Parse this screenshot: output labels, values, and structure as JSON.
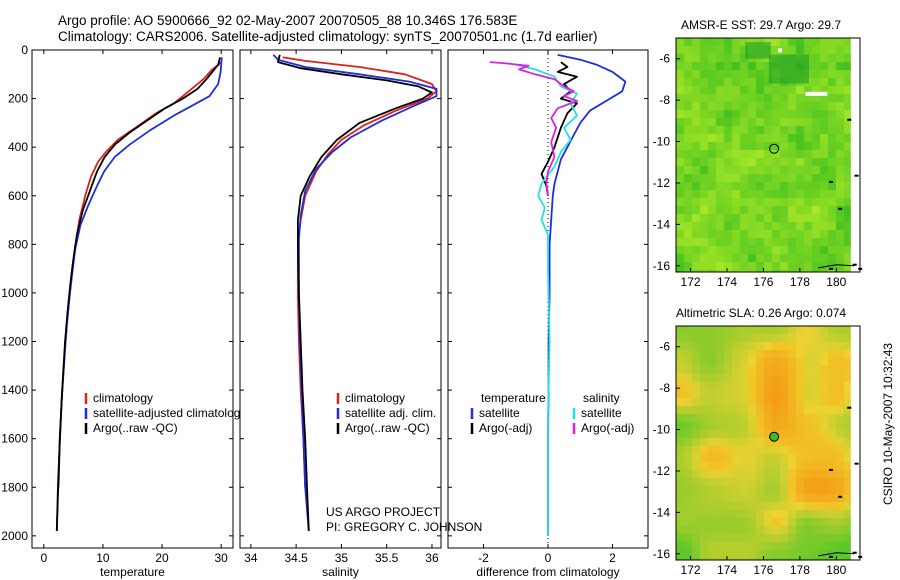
{
  "header": {
    "line1": "Argo profile: AO 5900666_92 02-May-2007 20070505_88 10.346S 176.583E",
    "line2": "Climatology: CARS2006. Satellite-adjusted climatology: synTS_20070501.nc (1.7d earlier)"
  },
  "credit": {
    "line1": "US ARGO PROJECT",
    "line2": "PI: GREGORY C. JOHNSON"
  },
  "stamp": "CSIRO 10-May-2007 10:32:43",
  "colors": {
    "clim": "#e0201a",
    "sat": "#1c2ee0",
    "argo": "#000000",
    "cyan": "#22e0e8",
    "magenta": "#e020d8"
  },
  "chart_data": [
    {
      "type": "line",
      "id": "temp",
      "xlabel": "temperature",
      "ylabel": "",
      "xlim": [
        -2,
        32
      ],
      "ylim": [
        2050,
        0
      ],
      "xticks": [
        "0",
        "10",
        "20",
        "30"
      ],
      "xtick_values": [
        0,
        10,
        20,
        30
      ],
      "yticks": [
        "0",
        "200",
        "400",
        "600",
        "800",
        "1000",
        "1200",
        "1400",
        "1600",
        "1800",
        "2000"
      ],
      "ytick_values": [
        0,
        200,
        400,
        600,
        800,
        1000,
        1200,
        1400,
        1600,
        1800,
        2000
      ],
      "legend": [
        "climatology",
        "satellite-adjusted climatology",
        "Argo(..raw -QC)"
      ],
      "series": [
        {
          "name": "climatology",
          "color_key": "clim",
          "points": [
            [
              29.9,
              50
            ],
            [
              29.6,
              60
            ],
            [
              28.5,
              80
            ],
            [
              27.0,
              120
            ],
            [
              25.0,
              160
            ],
            [
              22.0,
              220
            ],
            [
              19.0,
              260
            ],
            [
              15.5,
              320
            ],
            [
              12.5,
              370
            ],
            [
              10.5,
              420
            ],
            [
              9.2,
              460
            ],
            [
              8.0,
              520
            ],
            [
              7.0,
              600
            ],
            [
              6.0,
              700
            ],
            [
              5.4,
              800
            ],
            [
              4.8,
              900
            ],
            [
              4.4,
              1000
            ],
            [
              4.0,
              1100
            ],
            [
              3.6,
              1200
            ],
            [
              3.4,
              1300
            ],
            [
              3.1,
              1400
            ],
            [
              2.9,
              1500
            ],
            [
              2.7,
              1600
            ],
            [
              2.6,
              1700
            ],
            [
              2.5,
              1800
            ]
          ]
        },
        {
          "name": "satellite-adjusted climatology",
          "color_key": "sat",
          "points": [
            [
              30.1,
              30
            ],
            [
              30.0,
              60
            ],
            [
              29.9,
              90
            ],
            [
              29.5,
              140
            ],
            [
              28.0,
              190
            ],
            [
              25.0,
              230
            ],
            [
              22.0,
              270
            ],
            [
              18.0,
              330
            ],
            [
              14.5,
              390
            ],
            [
              12.0,
              440
            ],
            [
              10.2,
              500
            ],
            [
              9.0,
              560
            ],
            [
              7.5,
              640
            ],
            [
              6.2,
              720
            ],
            [
              5.3,
              820
            ],
            [
              4.8,
              920
            ],
            [
              4.3,
              1030
            ],
            [
              3.9,
              1130
            ],
            [
              3.6,
              1230
            ],
            [
              3.3,
              1340
            ],
            [
              3.0,
              1450
            ],
            [
              2.8,
              1560
            ],
            [
              2.6,
              1670
            ],
            [
              2.4,
              1780
            ],
            [
              2.3,
              1880
            ],
            [
              2.2,
              1980
            ]
          ]
        },
        {
          "name": "Argo(..raw -QC)",
          "color_key": "argo",
          "points": [
            [
              29.8,
              30
            ],
            [
              29.5,
              60
            ],
            [
              28.5,
              90
            ],
            [
              27.5,
              120
            ],
            [
              26.0,
              160
            ],
            [
              23.5,
              200
            ],
            [
              20.5,
              240
            ],
            [
              17.5,
              290
            ],
            [
              14.5,
              340
            ],
            [
              12.0,
              390
            ],
            [
              10.3,
              440
            ],
            [
              9.0,
              500
            ],
            [
              7.8,
              580
            ],
            [
              6.6,
              660
            ],
            [
              5.6,
              760
            ],
            [
              5.0,
              860
            ],
            [
              4.5,
              960
            ],
            [
              4.0,
              1080
            ],
            [
              3.6,
              1200
            ],
            [
              3.3,
              1320
            ],
            [
              3.0,
              1450
            ],
            [
              2.7,
              1600
            ],
            [
              2.5,
              1750
            ],
            [
              2.3,
              1900
            ],
            [
              2.2,
              1980
            ]
          ]
        }
      ]
    },
    {
      "type": "line",
      "id": "sal",
      "xlabel": "salinity",
      "ylabel": "",
      "xlim": [
        33.88,
        36.1
      ],
      "ylim": [
        2050,
        0
      ],
      "xticks": [
        "34",
        "34.5",
        "35",
        "35.5",
        "36"
      ],
      "xtick_values": [
        34,
        34.5,
        35,
        35.5,
        36
      ],
      "legend": [
        "climatology",
        "satellite adj. clim.",
        "Argo(..raw -QC)"
      ],
      "series": [
        {
          "name": "climatology",
          "color_key": "clim",
          "points": [
            [
              34.35,
              30
            ],
            [
              34.6,
              45
            ],
            [
              35.2,
              70
            ],
            [
              35.7,
              100
            ],
            [
              36.0,
              140
            ],
            [
              36.05,
              170
            ],
            [
              35.95,
              200
            ],
            [
              35.6,
              250
            ],
            [
              35.25,
              310
            ],
            [
              35.0,
              370
            ],
            [
              34.85,
              430
            ],
            [
              34.72,
              500
            ],
            [
              34.6,
              600
            ],
            [
              34.55,
              700
            ],
            [
              34.52,
              800
            ],
            [
              34.52,
              1000
            ],
            [
              34.53,
              1200
            ],
            [
              34.55,
              1400
            ],
            [
              34.58,
              1600
            ],
            [
              34.6,
              1800
            ]
          ]
        },
        {
          "name": "satellite adj. clim.",
          "color_key": "sat",
          "points": [
            [
              34.25,
              20
            ],
            [
              34.3,
              40
            ],
            [
              34.6,
              70
            ],
            [
              35.2,
              100
            ],
            [
              35.75,
              130
            ],
            [
              36.05,
              160
            ],
            [
              36.05,
              190
            ],
            [
              35.8,
              230
            ],
            [
              35.45,
              290
            ],
            [
              35.1,
              360
            ],
            [
              34.9,
              420
            ],
            [
              34.72,
              490
            ],
            [
              34.6,
              580
            ],
            [
              34.55,
              680
            ],
            [
              34.53,
              780
            ],
            [
              34.53,
              1000
            ],
            [
              34.54,
              1200
            ],
            [
              34.56,
              1400
            ],
            [
              34.58,
              1600
            ],
            [
              34.6,
              1800
            ],
            [
              34.64,
              1980
            ]
          ]
        },
        {
          "name": "Argo(..raw -QC)",
          "color_key": "argo",
          "points": [
            [
              34.32,
              20
            ],
            [
              34.3,
              50
            ],
            [
              34.55,
              75
            ],
            [
              35.0,
              100
            ],
            [
              35.5,
              125
            ],
            [
              35.85,
              150
            ],
            [
              36.0,
              175
            ],
            [
              35.9,
              200
            ],
            [
              35.6,
              240
            ],
            [
              35.2,
              300
            ],
            [
              34.95,
              370
            ],
            [
              34.78,
              440
            ],
            [
              34.65,
              520
            ],
            [
              34.55,
              600
            ],
            [
              34.52,
              700
            ],
            [
              34.52,
              800
            ],
            [
              34.53,
              1000
            ],
            [
              34.55,
              1200
            ],
            [
              34.57,
              1400
            ],
            [
              34.6,
              1600
            ],
            [
              34.62,
              1800
            ],
            [
              34.64,
              1980
            ]
          ]
        }
      ]
    },
    {
      "type": "line",
      "id": "diff",
      "xlabel": "difference from climatology",
      "ylabel": "",
      "xlim": [
        -3.1,
        3.1
      ],
      "ylim": [
        2050,
        0
      ],
      "xticks": [
        "-2",
        "0",
        "2"
      ],
      "xtick_values": [
        -2,
        0,
        2
      ],
      "legend_titles": [
        "temperature",
        "salinity"
      ],
      "legend": [
        "satellite",
        "Argo(-adj)",
        "satellite",
        "Argo(-adj)"
      ],
      "series": [
        {
          "name": "temperature satellite",
          "color_key": "sat",
          "points": [
            [
              0.3,
              20
            ],
            [
              1.0,
              40
            ],
            [
              1.5,
              60
            ],
            [
              2.0,
              90
            ],
            [
              2.4,
              130
            ],
            [
              2.3,
              170
            ],
            [
              1.8,
              210
            ],
            [
              1.3,
              250
            ],
            [
              1.0,
              300
            ],
            [
              0.8,
              350
            ],
            [
              0.6,
              400
            ],
            [
              0.4,
              450
            ],
            [
              0.3,
              500
            ],
            [
              0.2,
              550
            ],
            [
              0.15,
              600
            ],
            [
              0.1,
              700
            ],
            [
              0.05,
              800
            ],
            [
              0.05,
              1000
            ],
            [
              0.02,
              1200
            ],
            [
              0.02,
              1400
            ],
            [
              0.0,
              1600
            ],
            [
              0.0,
              1800
            ],
            [
              0.0,
              2000
            ]
          ]
        },
        {
          "name": "temperature Argo(-adj)",
          "color_key": "argo",
          "points": [
            [
              0.4,
              50
            ],
            [
              0.6,
              70
            ],
            [
              0.3,
              90
            ],
            [
              0.9,
              110
            ],
            [
              0.5,
              140
            ],
            [
              0.7,
              170
            ],
            [
              0.4,
              200
            ],
            [
              0.9,
              220
            ],
            [
              0.6,
              260
            ],
            [
              0.4,
              320
            ],
            [
              0.2,
              400
            ],
            [
              0.0,
              460
            ],
            [
              -0.2,
              510
            ],
            [
              -0.05,
              560
            ],
            [
              0.0,
              600
            ]
          ]
        },
        {
          "name": "salinity satellite",
          "color_key": "cyan",
          "points": [
            [
              -1.0,
              60
            ],
            [
              -0.4,
              80
            ],
            [
              0.2,
              110
            ],
            [
              0.4,
              150
            ],
            [
              0.9,
              180
            ],
            [
              0.7,
              220
            ],
            [
              0.9,
              270
            ],
            [
              0.5,
              320
            ],
            [
              0.7,
              370
            ],
            [
              0.4,
              420
            ],
            [
              0.2,
              480
            ],
            [
              -0.2,
              550
            ],
            [
              -0.3,
              600
            ],
            [
              -0.1,
              650
            ],
            [
              -0.2,
              700
            ],
            [
              0.0,
              760
            ],
            [
              0.0,
              900
            ],
            [
              0.05,
              1200
            ],
            [
              0.0,
              1500
            ],
            [
              0.0,
              1800
            ],
            [
              0.0,
              2000
            ]
          ]
        },
        {
          "name": "salinity Argo(-adj)",
          "color_key": "magenta",
          "points": [
            [
              -1.8,
              50
            ],
            [
              -1.3,
              55
            ],
            [
              -0.6,
              65
            ],
            [
              -0.9,
              80
            ],
            [
              -0.4,
              100
            ],
            [
              0.2,
              120
            ],
            [
              0.5,
              150
            ],
            [
              0.8,
              170
            ],
            [
              0.5,
              190
            ],
            [
              0.9,
              210
            ],
            [
              0.3,
              240
            ],
            [
              0.1,
              280
            ],
            [
              0.25,
              320
            ],
            [
              0.1,
              380
            ],
            [
              0.2,
              440
            ],
            [
              0.0,
              500
            ],
            [
              -0.05,
              550
            ],
            [
              0.0,
              600
            ]
          ]
        }
      ]
    },
    {
      "type": "heatmap",
      "id": "sst",
      "title": "AMSR-E SST: 29.7 Argo: 29.7",
      "xlim": [
        171.2,
        181.3
      ],
      "ylim": [
        -16.3,
        -5.0
      ],
      "xticks": [
        "172",
        "174",
        "176",
        "178",
        "180"
      ],
      "xtick_values": [
        172,
        174,
        176,
        178,
        180
      ],
      "yticks": [
        "-6",
        "-8",
        "-10",
        "-12",
        "-14",
        "-16"
      ],
      "ytick_values": [
        -6,
        -8,
        -10,
        -12,
        -14,
        -16
      ],
      "argo_position": [
        176.583,
        -10.346
      ]
    },
    {
      "type": "heatmap",
      "id": "sla",
      "title": "Altimetric SLA: 0.26 Argo: 0.074",
      "xlim": [
        171.2,
        181.3
      ],
      "ylim": [
        -16.3,
        -5.0
      ],
      "xticks": [
        "172",
        "174",
        "176",
        "178",
        "180"
      ],
      "xtick_values": [
        172,
        174,
        176,
        178,
        180
      ],
      "yticks": [
        "-6",
        "-8",
        "-10",
        "-12",
        "-14",
        "-16"
      ],
      "ytick_values": [
        -6,
        -8,
        -10,
        -12,
        -14,
        -16
      ],
      "argo_position": [
        176.583,
        -10.346
      ]
    }
  ]
}
